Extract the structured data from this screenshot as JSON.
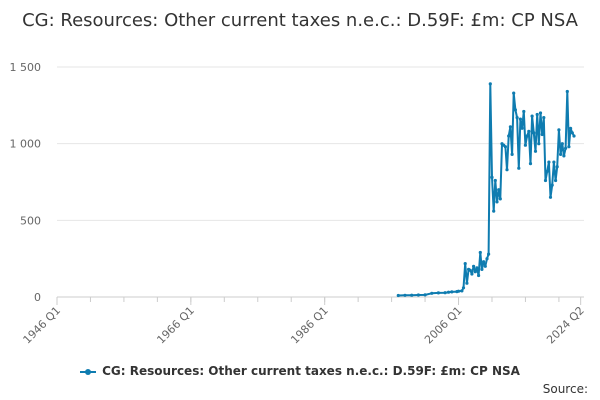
{
  "chart_data": {
    "type": "line",
    "title": "CG: Resources: Other current taxes n.e.c.: D.59F: £m: CP NSA",
    "xlabel": "",
    "ylabel": "",
    "ylim": [
      0,
      1500
    ],
    "y_ticks": [
      "0",
      "500",
      "1 000",
      "1 500"
    ],
    "y_tick_values": [
      0,
      500,
      1000,
      1500
    ],
    "x_ticks": [
      "1946 Q1",
      "1966 Q1",
      "1986 Q1",
      "2006 Q1",
      "2024 Q2"
    ],
    "x_tick_values": [
      1946.0,
      1966.0,
      1986.0,
      2006.0,
      2024.25
    ],
    "xlim": [
      1946.0,
      2024.75
    ],
    "grid": "horizontal",
    "legend_position": "bottom",
    "series": [
      {
        "name": "CG: Resources: Other current taxes n.e.c.: D.59F: £m: CP NSA",
        "color": "#0f7cb0",
        "points": [
          [
            1997.0,
            10
          ],
          [
            1998.0,
            11
          ],
          [
            1999.0,
            12
          ],
          [
            2000.0,
            13
          ],
          [
            2001.0,
            14
          ],
          [
            2002.0,
            24
          ],
          [
            2003.0,
            27
          ],
          [
            2004.0,
            28
          ],
          [
            2004.5,
            31
          ],
          [
            2005.0,
            33
          ],
          [
            2005.75,
            35
          ],
          [
            2006.0,
            38
          ],
          [
            2006.5,
            40
          ],
          [
            2006.75,
            60
          ],
          [
            2007.0,
            218
          ],
          [
            2007.25,
            90
          ],
          [
            2007.5,
            180
          ],
          [
            2007.75,
            175
          ],
          [
            2008.0,
            150
          ],
          [
            2008.25,
            200
          ],
          [
            2008.5,
            165
          ],
          [
            2008.75,
            190
          ],
          [
            2009.0,
            140
          ],
          [
            2009.25,
            290
          ],
          [
            2009.5,
            180
          ],
          [
            2009.75,
            230
          ],
          [
            2010.0,
            200
          ],
          [
            2010.25,
            250
          ],
          [
            2010.5,
            280
          ],
          [
            2010.75,
            1390
          ],
          [
            2011.0,
            780
          ],
          [
            2011.25,
            560
          ],
          [
            2011.5,
            760
          ],
          [
            2011.75,
            620
          ],
          [
            2012.0,
            700
          ],
          [
            2012.25,
            640
          ],
          [
            2012.5,
            1000
          ],
          [
            2012.75,
            990
          ],
          [
            2013.0,
            980
          ],
          [
            2013.25,
            830
          ],
          [
            2013.5,
            1050
          ],
          [
            2013.75,
            1110
          ],
          [
            2014.0,
            930
          ],
          [
            2014.25,
            1330
          ],
          [
            2014.5,
            1220
          ],
          [
            2014.75,
            1170
          ],
          [
            2015.0,
            840
          ],
          [
            2015.25,
            1160
          ],
          [
            2015.5,
            1100
          ],
          [
            2015.75,
            1210
          ],
          [
            2016.0,
            990
          ],
          [
            2016.25,
            1050
          ],
          [
            2016.5,
            1080
          ],
          [
            2016.75,
            870
          ],
          [
            2017.0,
            1180
          ],
          [
            2017.25,
            1070
          ],
          [
            2017.5,
            950
          ],
          [
            2017.75,
            1190
          ],
          [
            2018.0,
            1000
          ],
          [
            2018.25,
            1200
          ],
          [
            2018.5,
            1060
          ],
          [
            2018.75,
            1170
          ],
          [
            2019.0,
            760
          ],
          [
            2019.25,
            820
          ],
          [
            2019.5,
            880
          ],
          [
            2019.75,
            650
          ],
          [
            2020.0,
            730
          ],
          [
            2020.25,
            880
          ],
          [
            2020.5,
            760
          ],
          [
            2020.75,
            850
          ],
          [
            2021.0,
            1090
          ],
          [
            2021.25,
            930
          ],
          [
            2021.5,
            1000
          ],
          [
            2021.75,
            920
          ],
          [
            2022.0,
            970
          ],
          [
            2022.25,
            1340
          ],
          [
            2022.5,
            980
          ],
          [
            2022.75,
            1100
          ],
          [
            2023.0,
            1070
          ],
          [
            2023.25,
            1050
          ]
        ]
      }
    ]
  },
  "source_label": "Source:"
}
